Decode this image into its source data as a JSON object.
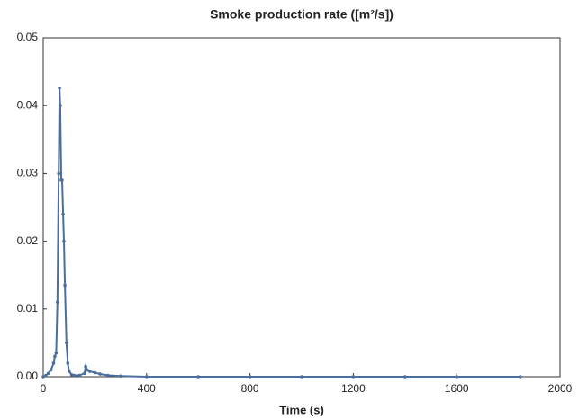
{
  "chart_data": {
    "type": "line",
    "title": "Smoke production rate ([m²/s])",
    "x_label": "Time (s)",
    "x": [
      0,
      10,
      20,
      30,
      40,
      45,
      50,
      55,
      60,
      63,
      66,
      70,
      73,
      77,
      80,
      84,
      90,
      95,
      100,
      110,
      120,
      140,
      160,
      164,
      170,
      180,
      200,
      220,
      250,
      300,
      400,
      600,
      800,
      1000,
      1200,
      1400,
      1600,
      1846
    ],
    "series": [
      {
        "name": "Smoke production rate",
        "color": "#4a6f9a",
        "values": [
          0.0,
          0.0002,
          0.0005,
          0.001,
          0.002,
          0.003,
          0.0035,
          0.011,
          0.03,
          0.0426,
          0.04,
          0.029,
          0.029,
          0.024,
          0.02,
          0.0135,
          0.005,
          0.002,
          0.0008,
          0.0003,
          0.0002,
          0.0002,
          0.0005,
          0.0015,
          0.001,
          0.0008,
          0.0006,
          0.0004,
          0.0002,
          0.0001,
          0.0,
          0.0,
          0.0,
          0.0,
          0.0,
          0.0,
          0.0,
          0.0
        ]
      }
    ],
    "xlim": [
      0,
      2000
    ],
    "xticks": [
      0,
      400,
      800,
      1200,
      1600,
      2000
    ],
    "ylim": [
      0,
      0.05
    ],
    "yticks": [
      {
        "value": 0,
        "label": "0.00"
      },
      0.01,
      0.02,
      0.03,
      0.04,
      0.05
    ]
  }
}
